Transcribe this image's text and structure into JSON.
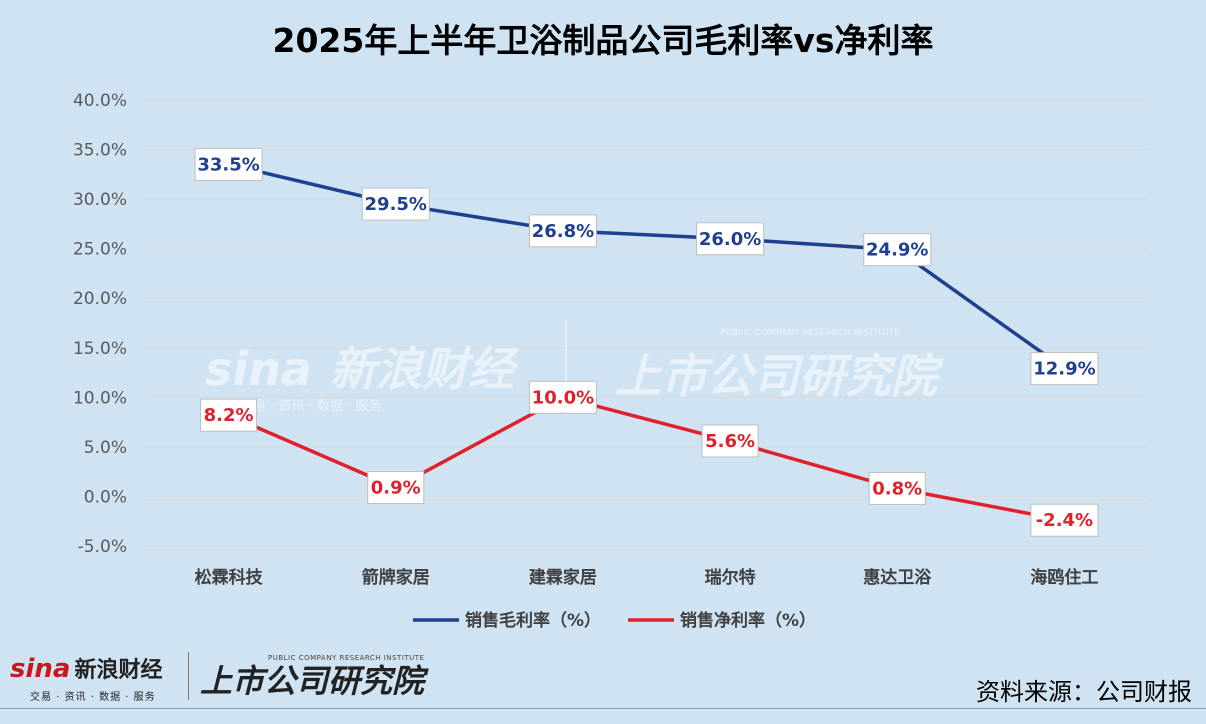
{
  "chart_data": {
    "type": "line",
    "title": "2025年上半年卫浴制品公司毛利率vs净利率",
    "categories": [
      "松霖科技",
      "箭牌家居",
      "建霖家居",
      "瑞尔特",
      "惠达卫浴",
      "海鸥住工"
    ],
    "series": [
      {
        "name": "销售毛利率（%）",
        "values": [
          33.5,
          29.5,
          26.8,
          26.0,
          24.9,
          12.9
        ],
        "labels": [
          "33.5%",
          "29.5%",
          "26.8%",
          "26.0%",
          "24.9%",
          "12.9%"
        ],
        "color": "#1f3f8f"
      },
      {
        "name": "销售净利率（%）",
        "values": [
          8.2,
          0.9,
          10.0,
          5.6,
          0.8,
          -2.4
        ],
        "labels": [
          "8.2%",
          "0.9%",
          "10.0%",
          "5.6%",
          "0.8%",
          "-2.4%"
        ],
        "color": "#e0202a"
      }
    ],
    "ylim": [
      -5,
      40
    ],
    "yticks": [
      40,
      35,
      30,
      25,
      20,
      15,
      10,
      5,
      0,
      -5
    ],
    "ytick_labels": [
      "40.0%",
      "35.0%",
      "30.0%",
      "25.0%",
      "20.0%",
      "15.0%",
      "10.0%",
      "5.0%",
      "0.0%",
      "-5.0%"
    ],
    "grid": true,
    "legend_position": "bottom"
  },
  "watermark": {
    "sina": "sina",
    "sina_cn": "新浪财经",
    "sina_sub": "交易 · 资讯 · 数据 · 服务",
    "institute_cn": "上市公司研究院",
    "institute_en": "PUBLIC COMPANY RESEARCH INSTITUTE"
  },
  "source_note": "资料来源：公司财报"
}
